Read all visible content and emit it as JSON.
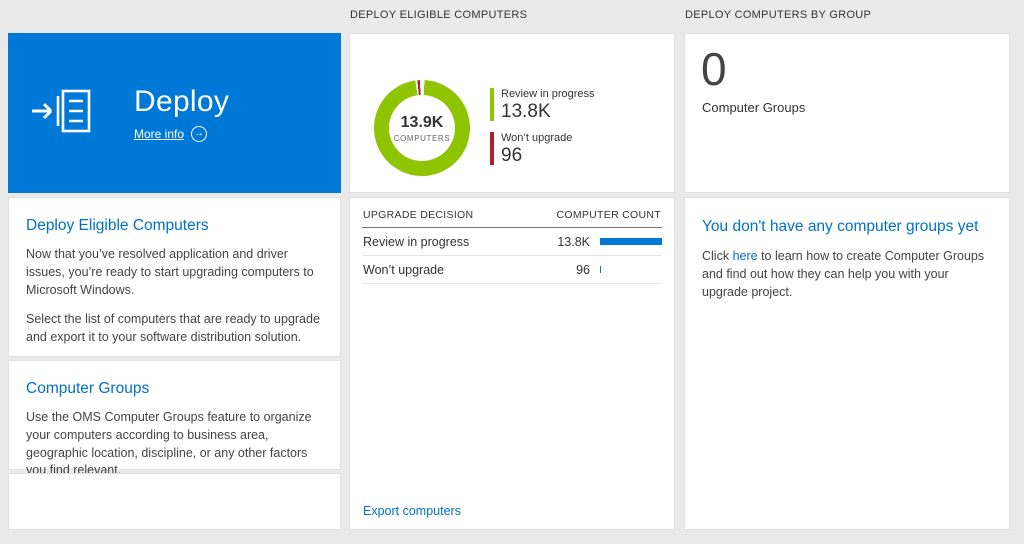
{
  "colors": {
    "accent_blue": "#0078d7",
    "link_blue": "#0072c6",
    "donut_green": "#8fc400",
    "status_red": "#a4262c",
    "bar_blue": "#0078d7",
    "background": "#eaeaea"
  },
  "headers": {
    "middle": "DEPLOY ELIGIBLE COMPUTERS",
    "right": "DEPLOY COMPUTERS BY GROUP"
  },
  "left_panel": {
    "tile": {
      "title": "Deploy",
      "more_info_label": "More info"
    },
    "sections": [
      {
        "heading": "Deploy Eligible Computers",
        "paragraphs": [
          "Now that you’ve resolved application and driver issues, you’re ready to start upgrading computers to Microsoft Windows.",
          "Select the list of computers that are ready to upgrade and export it to your software distribution solution."
        ]
      },
      {
        "heading": "Computer Groups",
        "paragraphs": [
          "Use the OMS Computer Groups feature to organize your computers according to business area, geographic location, discipline, or any other factors you find relevant."
        ]
      }
    ]
  },
  "middle_panel": {
    "donut": {
      "center_value": "13.9K",
      "center_label": "COMPUTERS",
      "legend": [
        {
          "label": "Review in progress",
          "value": "13.8K",
          "color": "#8fc400"
        },
        {
          "label": "Won’t upgrade",
          "value": "96",
          "color": "#a4262c"
        }
      ]
    },
    "table": {
      "columns": [
        "UPGRADE DECISION",
        "COMPUTER COUNT"
      ],
      "rows": [
        {
          "label": "Review in progress",
          "value": "13.8K",
          "bar_pct": 100
        },
        {
          "label": "Won’t upgrade",
          "value": "96",
          "bar_pct": 2
        }
      ]
    },
    "footer_link": "Export computers"
  },
  "right_panel": {
    "tile": {
      "value": "0",
      "label": "Computer Groups"
    },
    "empty_state": {
      "heading": "You don't have any computer groups yet",
      "text_before_link": "Click ",
      "link_text": "here",
      "text_after_link": " to learn how to create Computer Groups and find out how they can help you with your upgrade project."
    }
  },
  "chart_data": {
    "type": "pie",
    "title": "Deploy Eligible Computers",
    "center_total": "13.9K COMPUTERS",
    "segments": [
      {
        "label": "Review in progress",
        "value": 13800,
        "display": "13.8K",
        "color": "#8fc400"
      },
      {
        "label": "Won't upgrade",
        "value": 96,
        "display": "96",
        "color": "#a4262c"
      }
    ],
    "legend_position": "right"
  }
}
